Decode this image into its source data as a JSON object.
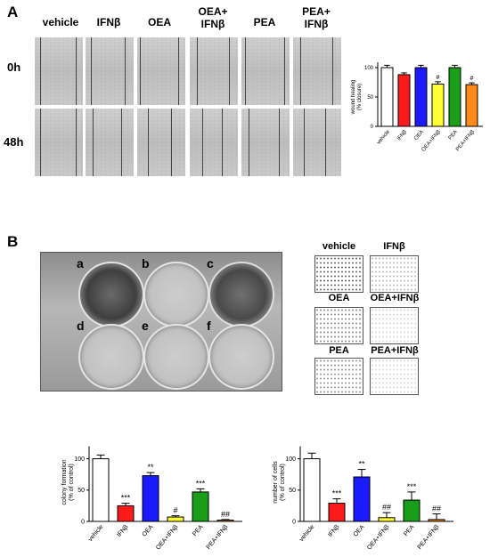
{
  "panelA": {
    "label": "A",
    "columns": [
      "vehicle",
      "IFNβ",
      "OEA",
      "OEA+\nIFNβ",
      "PEA",
      "PEA+\nIFNβ"
    ],
    "rows": [
      "0h",
      "48h"
    ]
  },
  "panelB": {
    "label": "B",
    "wells": [
      "a",
      "b",
      "c",
      "d",
      "e",
      "f"
    ],
    "thumbs": [
      "vehicle",
      "IFNβ",
      "OEA",
      "OEA+IFNβ",
      "PEA",
      "PEA+IFNβ"
    ]
  },
  "colors": {
    "vehicle": "#ffffff",
    "ifn": "#ff1a1a",
    "oea": "#1a1aff",
    "oea_ifn": "#ffff33",
    "pea": "#1a9e1a",
    "pea_ifn": "#ff8c1a"
  },
  "chart_data": [
    {
      "type": "bar",
      "ylabel": "wound healing\n(% closure)",
      "categories": [
        "vehicle",
        "IFNβ",
        "OEA",
        "OEA+IFNβ",
        "PEA",
        "PEA+IFNβ"
      ],
      "values": [
        100,
        88,
        100,
        72,
        100,
        71
      ],
      "errors": [
        4,
        3,
        4,
        4,
        4,
        3
      ],
      "annotations": [
        "",
        "",
        "",
        "#",
        "",
        "#"
      ],
      "ylim": [
        0,
        100
      ],
      "yticks": [
        "0",
        "50",
        "100"
      ]
    },
    {
      "type": "bar",
      "ylabel": "colony formation\n(% of control)",
      "categories": [
        "vehicle",
        "IFNβ",
        "OEA",
        "OEA+IFNβ",
        "PEA",
        "PEA+IFNβ"
      ],
      "values": [
        100,
        25,
        73,
        7,
        47,
        2
      ],
      "errors": [
        6,
        4,
        5,
        2,
        5,
        1
      ],
      "annotations": [
        "",
        "***",
        "**",
        "#",
        "***",
        "##"
      ],
      "ylim": [
        0,
        125
      ],
      "yticks": [
        "0",
        "50",
        "100"
      ]
    },
    {
      "type": "bar",
      "ylabel": "number of cells\n(% of control)",
      "categories": [
        "vehicle",
        "IFNβ",
        "OEA",
        "OEA+IFNβ",
        "PEA",
        "PEA+IFNβ"
      ],
      "values": [
        100,
        29,
        71,
        6,
        34,
        3
      ],
      "errors": [
        9,
        7,
        12,
        8,
        13,
        9
      ],
      "annotations": [
        "",
        "***",
        "**",
        "##",
        "***",
        "##"
      ],
      "ylim": [
        0,
        125
      ],
      "yticks": [
        "0",
        "50",
        "100"
      ]
    }
  ]
}
